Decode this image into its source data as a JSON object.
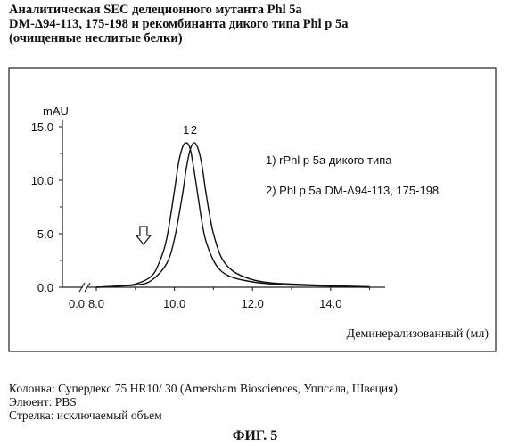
{
  "heading": {
    "line1": "Аналитическая SEC делеционного мутанта Phl 5a",
    "line2": "DM-Δ94-113, 175-198 и рекомбинанта дикого типа Phl p 5a",
    "line3": "(очищенные неслитые белки)"
  },
  "chart_data": {
    "type": "line",
    "ylabel": "mAU",
    "xlabel": "Деминерализованный (мл)",
    "xlim": [
      6.2,
      15.2
    ],
    "ylim": [
      0,
      15
    ],
    "x_ticks": [
      "0.0",
      "8.0",
      "10.0",
      "12.0",
      "14.0"
    ],
    "y_ticks": [
      "0.0",
      "5.0",
      "10.0",
      "15.0"
    ],
    "axis_break": true,
    "grid": false,
    "series": [
      {
        "name": "1) rPhl p 5a   дикого типа",
        "peak_label": "1",
        "x": [
          8.0,
          8.5,
          9.0,
          9.4,
          9.6,
          9.8,
          10.0,
          10.1,
          10.2,
          10.3,
          10.4,
          10.5,
          10.6,
          10.7,
          10.8,
          11.0,
          11.2,
          11.5,
          12.0,
          12.5,
          13.0,
          14.0,
          15.0
        ],
        "y": [
          0.0,
          0.1,
          0.3,
          1.0,
          2.2,
          4.5,
          9.0,
          11.5,
          13.0,
          13.5,
          13.0,
          11.0,
          8.6,
          6.2,
          4.4,
          2.5,
          1.5,
          0.9,
          0.5,
          0.3,
          0.2,
          0.1,
          0.0
        ]
      },
      {
        "name": "2) Phl p 5a DM-Δ94-113, 175-198",
        "peak_label": "2",
        "x": [
          8.0,
          8.5,
          9.0,
          9.4,
          9.8,
          10.0,
          10.2,
          10.3,
          10.4,
          10.5,
          10.6,
          10.7,
          10.8,
          10.9,
          11.0,
          11.2,
          11.5,
          12.0,
          12.5,
          13.0,
          14.0,
          15.0
        ],
        "y": [
          0.0,
          0.1,
          0.2,
          0.6,
          2.2,
          4.5,
          8.5,
          11.0,
          12.8,
          13.5,
          13.0,
          11.5,
          9.0,
          6.8,
          5.0,
          2.8,
          1.5,
          0.7,
          0.4,
          0.3,
          0.15,
          0.05
        ]
      }
    ],
    "annotation": {
      "type": "arrow-down",
      "x": 9.3,
      "y": 3.0,
      "meaning": "исключаемый объем"
    }
  },
  "footer": {
    "column": "Колонка: Супердекс 75 HR10/ 30 (Amersham Biosciences, Уппсала, Швеция)",
    "eluent": "Элюент: PBS",
    "arrow": "Стрелка: исключаемый объем"
  },
  "figure_label": "ФИГ. 5"
}
